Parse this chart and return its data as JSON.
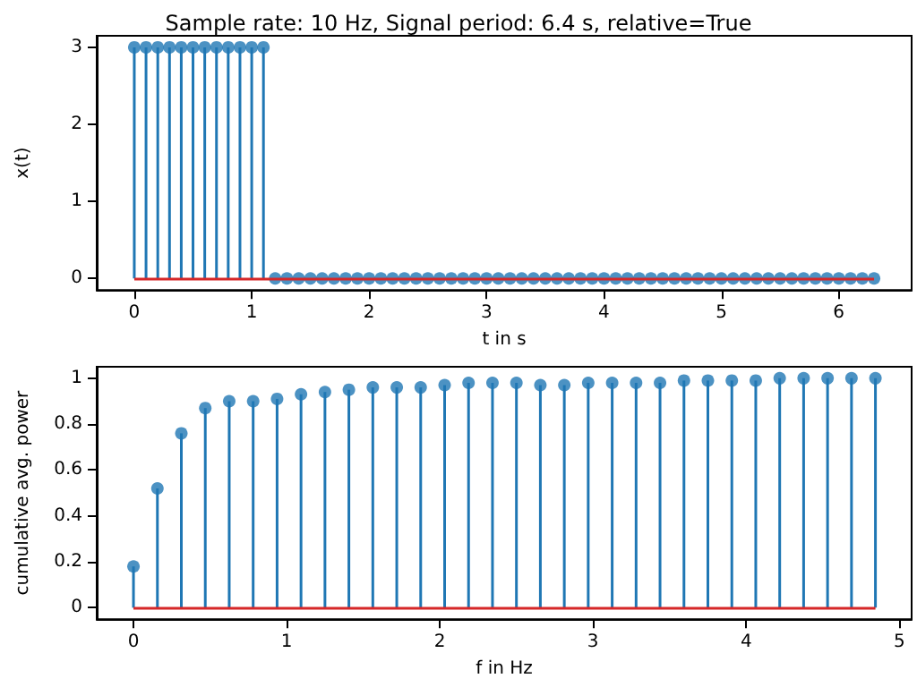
{
  "chart_data": [
    {
      "type": "lollipop",
      "title": "Sample rate: 10 Hz, Signal period: 6.4 s, relative=True",
      "xlabel": "t in s",
      "ylabel": "x(t)",
      "x": [
        0,
        0.1,
        0.2,
        0.3,
        0.4,
        0.5,
        0.6,
        0.7,
        0.8,
        0.9,
        1.0,
        1.1,
        1.2,
        1.3,
        1.4,
        1.5,
        1.6,
        1.7,
        1.8,
        1.9,
        2.0,
        2.1,
        2.2,
        2.3,
        2.4,
        2.5,
        2.6,
        2.7,
        2.8,
        2.9,
        3.0,
        3.1,
        3.2,
        3.3,
        3.4,
        3.5,
        3.6,
        3.7,
        3.8,
        3.9,
        4.0,
        4.1,
        4.2,
        4.3,
        4.4,
        4.5,
        4.6,
        4.7,
        4.8,
        4.9,
        5.0,
        5.1,
        5.2,
        5.3,
        5.4,
        5.5,
        5.6,
        5.7,
        5.8,
        5.9,
        6.0,
        6.1,
        6.2,
        6.3
      ],
      "series": [
        {
          "color": "#1f77b4",
          "values": [
            3,
            3,
            3,
            3,
            3,
            3,
            3,
            3,
            3,
            3,
            3,
            3,
            0,
            0,
            0,
            0,
            0,
            0,
            0,
            0,
            0,
            0,
            0,
            0,
            0,
            0,
            0,
            0,
            0,
            0,
            0,
            0,
            0,
            0,
            0,
            0,
            0,
            0,
            0,
            0,
            0,
            0,
            0,
            0,
            0,
            0,
            0,
            0,
            0,
            0,
            0,
            0,
            0,
            0,
            0,
            0,
            0,
            0,
            0,
            0,
            0,
            0,
            0,
            0
          ]
        }
      ],
      "ref_lines": [
        {
          "axis": "y",
          "value": 0,
          "color": "#d62728"
        }
      ],
      "xlim": [
        -0.32,
        6.62
      ],
      "xticks": [
        0,
        1,
        2,
        3,
        4,
        5,
        6
      ],
      "ylim": [
        -0.15,
        3.15
      ],
      "yticks": [
        0,
        1,
        2,
        3
      ],
      "marker": "circle"
    },
    {
      "type": "lollipop",
      "xlabel": "f in Hz",
      "ylabel": "cumulative avg. power",
      "x": [
        0,
        0.15625,
        0.3125,
        0.46875,
        0.625,
        0.78125,
        0.9375,
        1.09375,
        1.25,
        1.40625,
        1.5625,
        1.71875,
        1.875,
        2.03125,
        2.1875,
        2.34375,
        2.5,
        2.65625,
        2.8125,
        2.96875,
        3.125,
        3.28125,
        3.4375,
        3.59375,
        3.75,
        3.90625,
        4.0625,
        4.21875,
        4.375,
        4.53125,
        4.6875,
        4.84375
      ],
      "series": [
        {
          "color": "#1f77b4",
          "values": [
            0.18,
            0.52,
            0.76,
            0.87,
            0.9,
            0.9,
            0.91,
            0.93,
            0.94,
            0.95,
            0.96,
            0.96,
            0.96,
            0.97,
            0.98,
            0.98,
            0.98,
            0.97,
            0.97,
            0.98,
            0.98,
            0.98,
            0.98,
            0.99,
            0.99,
            0.99,
            0.99,
            1.0,
            1.0,
            1.0,
            1.0,
            1.0
          ]
        }
      ],
      "ref_lines": [
        {
          "axis": "y",
          "value": 0,
          "color": "#d62728"
        }
      ],
      "xlim": [
        -0.24,
        5.08
      ],
      "xticks": [
        0,
        1,
        2,
        3,
        4,
        5
      ],
      "ylim": [
        -0.05,
        1.05
      ],
      "yticks": [
        0,
        0.2,
        0.4,
        0.6,
        0.8,
        1.0
      ],
      "marker": "circle"
    }
  ]
}
